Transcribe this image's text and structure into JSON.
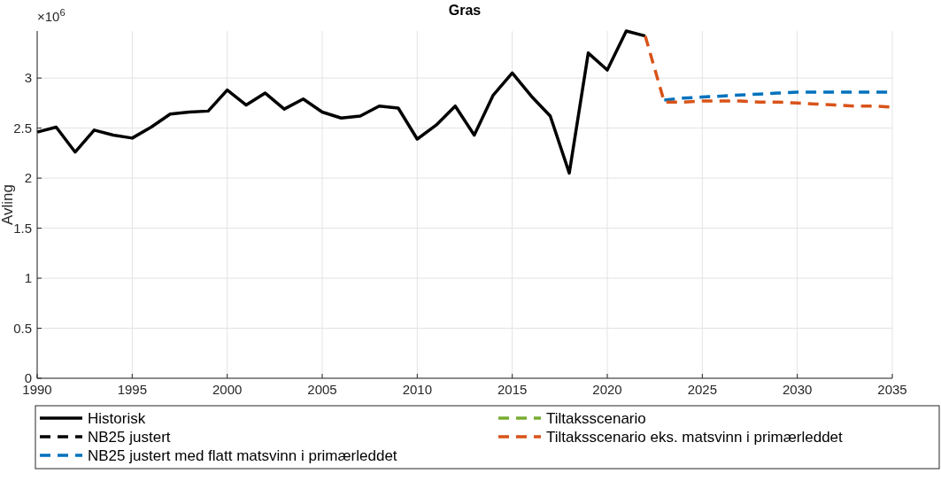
{
  "chart_data": {
    "type": "line",
    "title": "Gras",
    "ylabel": "Avling",
    "annotations": [
      "×10$^{6}$"
    ],
    "xlim": [
      1990,
      2035
    ],
    "xticks": [
      1990,
      1995,
      2000,
      2005,
      2010,
      2015,
      2020,
      2025,
      2030,
      2035
    ],
    "ylim": [
      0,
      3.47
    ],
    "yticks": [
      0,
      0.5,
      1,
      1.5,
      2,
      2.5,
      3
    ],
    "grid": true,
    "legend": "bottom",
    "series": [
      {
        "name": "Historisk",
        "color": "#000000",
        "line_style": "solid",
        "x": [
          1990,
          1991,
          1992,
          1993,
          1994,
          1995,
          1996,
          1997,
          1998,
          1999,
          2000,
          2001,
          2002,
          2003,
          2004,
          2005,
          2006,
          2007,
          2008,
          2009,
          2010,
          2011,
          2012,
          2013,
          2014,
          2015,
          2016,
          2017,
          2018,
          2019,
          2020,
          2021,
          2022
        ],
        "values": [
          2.46,
          2.51,
          2.26,
          2.48,
          2.43,
          2.4,
          2.51,
          2.64,
          2.66,
          2.67,
          2.88,
          2.73,
          2.85,
          2.69,
          2.79,
          2.66,
          2.6,
          2.62,
          2.72,
          2.7,
          2.39,
          2.53,
          2.72,
          2.43,
          2.83,
          3.05,
          2.82,
          2.62,
          2.05,
          3.25,
          3.08,
          3.47,
          3.42
        ]
      },
      {
        "name": "NB25 justert",
        "color": "#000000",
        "line_style": "dashed"
      },
      {
        "name": "NB25 justert med flatt matsvinn i primærleddet",
        "color": "#0072bd",
        "line_style": "dashed",
        "x": [
          2023,
          2024,
          2025,
          2026,
          2027,
          2028,
          2029,
          2030,
          2031,
          2032,
          2033,
          2034,
          2035
        ],
        "values": [
          2.78,
          2.8,
          2.81,
          2.82,
          2.83,
          2.84,
          2.85,
          2.86,
          2.86,
          2.86,
          2.86,
          2.86,
          2.86
        ]
      },
      {
        "name": "Tiltaksscenario",
        "color": "#77ac30",
        "line_style": "dashed"
      },
      {
        "name": "Tiltaksscenario eks. matsvinn i primærleddet",
        "color": "#d95319",
        "line_style": "dashed",
        "x": [
          2022,
          2023,
          2024,
          2025,
          2026,
          2027,
          2028,
          2029,
          2030,
          2031,
          2032,
          2033,
          2034,
          2035
        ],
        "values": [
          3.42,
          2.76,
          2.76,
          2.77,
          2.77,
          2.77,
          2.76,
          2.76,
          2.75,
          2.74,
          2.73,
          2.72,
          2.72,
          2.71
        ]
      }
    ]
  }
}
